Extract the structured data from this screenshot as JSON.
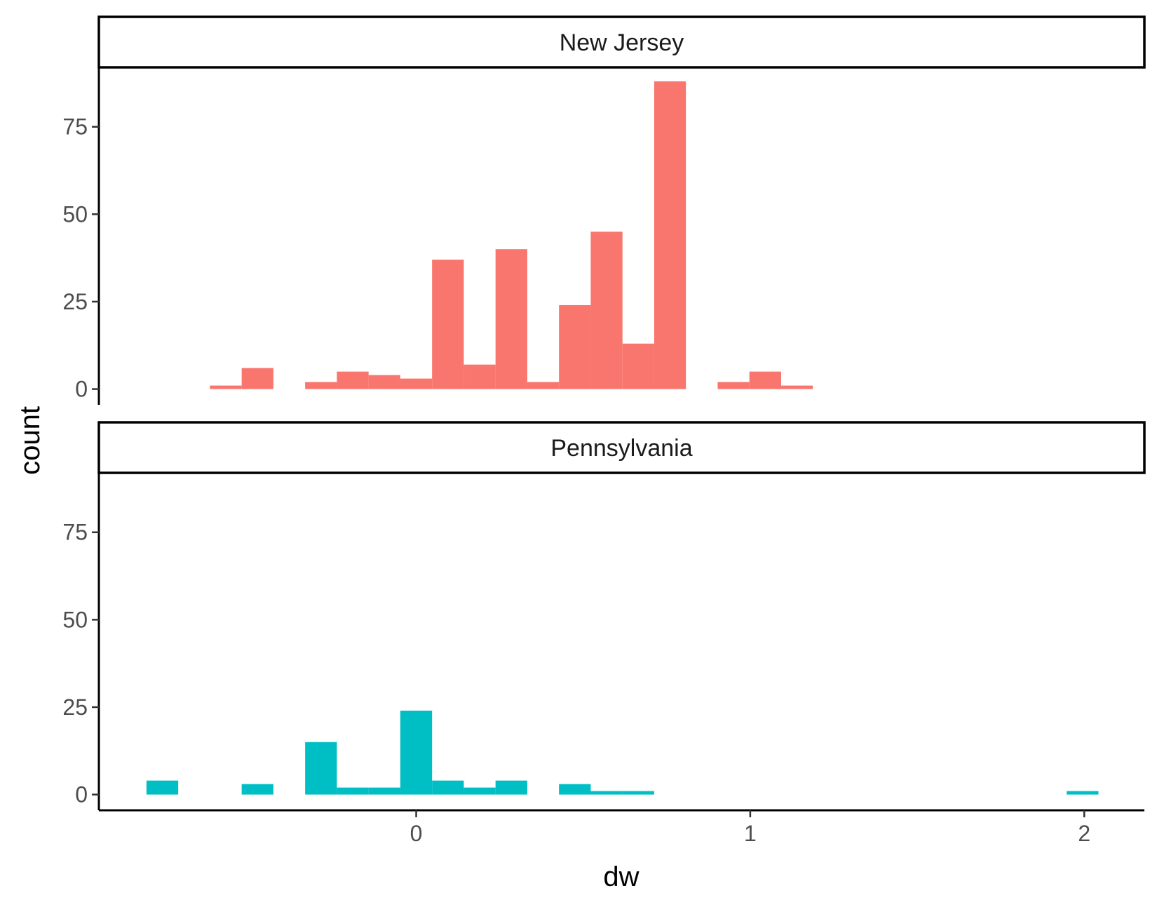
{
  "chart_data": {
    "type": "bar",
    "subtype": "histogram",
    "xlabel": "dw",
    "ylabel": "count",
    "xlim": [
      -0.95,
      2.18
    ],
    "ylim": [
      -4.5,
      92
    ],
    "x_ticks": [
      0,
      1,
      2
    ],
    "x_tick_labels": [
      "0",
      "1",
      "2"
    ],
    "y_ticks": [
      0,
      25,
      50,
      75
    ],
    "y_tick_labels": [
      "0",
      "25",
      "50",
      "75"
    ],
    "bin_width": 0.095,
    "grid": false,
    "legend": "none",
    "facets": [
      {
        "label": "New Jersey",
        "color": "#F8766D",
        "bins": [
          {
            "x": -0.57,
            "count": 1
          },
          {
            "x": -0.475,
            "count": 6
          },
          {
            "x": -0.285,
            "count": 2
          },
          {
            "x": -0.19,
            "count": 5
          },
          {
            "x": -0.095,
            "count": 4
          },
          {
            "x": 0.0,
            "count": 3
          },
          {
            "x": 0.095,
            "count": 37
          },
          {
            "x": 0.19,
            "count": 7
          },
          {
            "x": 0.285,
            "count": 40
          },
          {
            "x": 0.38,
            "count": 2
          },
          {
            "x": 0.475,
            "count": 24
          },
          {
            "x": 0.57,
            "count": 45
          },
          {
            "x": 0.665,
            "count": 13
          },
          {
            "x": 0.76,
            "count": 88
          },
          {
            "x": 0.95,
            "count": 2
          },
          {
            "x": 1.045,
            "count": 5
          },
          {
            "x": 1.14,
            "count": 1
          }
        ]
      },
      {
        "label": "Pennsylvania",
        "color": "#00BFC4",
        "bins": [
          {
            "x": -0.76,
            "count": 4
          },
          {
            "x": -0.475,
            "count": 3
          },
          {
            "x": -0.285,
            "count": 15
          },
          {
            "x": -0.19,
            "count": 2
          },
          {
            "x": -0.095,
            "count": 2
          },
          {
            "x": 0.0,
            "count": 24
          },
          {
            "x": 0.095,
            "count": 4
          },
          {
            "x": 0.19,
            "count": 2
          },
          {
            "x": 0.285,
            "count": 4
          },
          {
            "x": 0.475,
            "count": 3
          },
          {
            "x": 0.57,
            "count": 1
          },
          {
            "x": 0.665,
            "count": 1
          },
          {
            "x": 1.995,
            "count": 1
          }
        ]
      }
    ]
  }
}
